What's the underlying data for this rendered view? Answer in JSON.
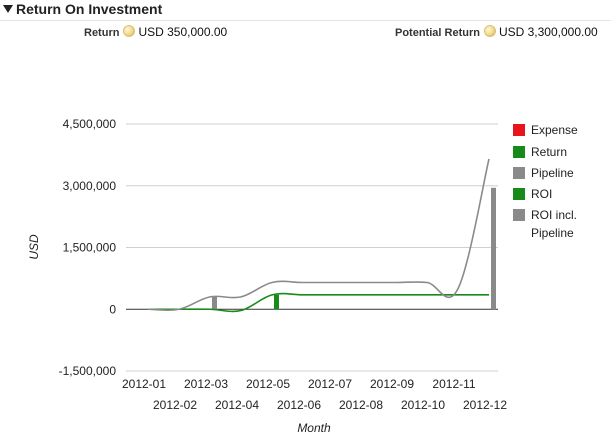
{
  "header": {
    "title": "Return On Investment"
  },
  "summary": {
    "return_label": "Return",
    "return_value": "USD 350,000.00",
    "potential_label": "Potential Return",
    "potential_value": "USD 3,300,000.00"
  },
  "colors": {
    "expense": "#e8141b",
    "return": "#178a17",
    "pipeline": "#8a8a8a",
    "roi": "#178a17",
    "roi_pipeline": "#8a8a8a",
    "grid": "#d0d0d0",
    "zero_line": "#333333"
  },
  "chart_data": {
    "type": "line",
    "title": "",
    "xlabel": "Month",
    "ylabel": "USD",
    "ylim": [
      -1500000,
      4500000
    ],
    "yticks": [
      4500000,
      3000000,
      1500000,
      0,
      -1500000
    ],
    "ytick_labels": [
      "4,500,000",
      "3,000,000",
      "1,500,000",
      "0",
      "-1,500,000"
    ],
    "categories": [
      "2012-01",
      "2012-02",
      "2012-03",
      "2012-04",
      "2012-05",
      "2012-06",
      "2012-07",
      "2012-08",
      "2012-09",
      "2012-10",
      "2012-11",
      "2012-12"
    ],
    "legend": [
      "Expense",
      "Return",
      "Pipeline",
      "ROI",
      "ROI incl. Pipeline"
    ],
    "legend_position": "right",
    "grid": true,
    "series": [
      {
        "name": "Expense",
        "kind": "bar",
        "values": [
          0,
          0,
          0,
          0,
          0,
          0,
          0,
          0,
          0,
          0,
          0,
          0
        ]
      },
      {
        "name": "Return",
        "kind": "bar",
        "values": [
          0,
          0,
          0,
          0,
          350000,
          0,
          0,
          0,
          0,
          0,
          0,
          0
        ]
      },
      {
        "name": "Pipeline",
        "kind": "bar",
        "values": [
          0,
          0,
          300000,
          0,
          0,
          0,
          0,
          0,
          0,
          0,
          0,
          2950000
        ]
      },
      {
        "name": "ROI",
        "kind": "line",
        "values": [
          0,
          0,
          0,
          -30000,
          350000,
          350000,
          350000,
          350000,
          350000,
          350000,
          350000,
          350000
        ]
      },
      {
        "name": "ROI incl. Pipeline",
        "kind": "line",
        "values": [
          0,
          0,
          300000,
          300000,
          650000,
          650000,
          650000,
          650000,
          650000,
          650000,
          500000,
          3650000
        ]
      }
    ]
  }
}
